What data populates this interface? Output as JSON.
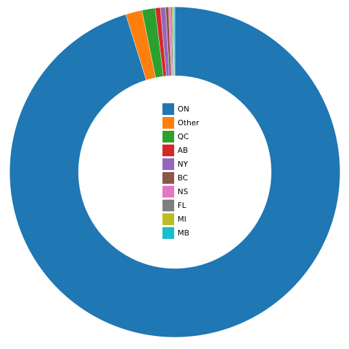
{
  "chart_data": {
    "type": "donut",
    "categories": [
      "ON",
      "Other",
      "QC",
      "AB",
      "NY",
      "BC",
      "NS",
      "FL",
      "MI",
      "MB"
    ],
    "values": [
      95.2,
      1.6,
      1.3,
      0.5,
      0.5,
      0.3,
      0.2,
      0.15,
      0.15,
      0.1
    ],
    "colors": [
      "#1f77b4",
      "#ff7f0e",
      "#2ca02c",
      "#d62728",
      "#9467bd",
      "#8c564b",
      "#e377c2",
      "#7f7f7f",
      "#bcbd22",
      "#17becf"
    ],
    "legend": "center"
  }
}
